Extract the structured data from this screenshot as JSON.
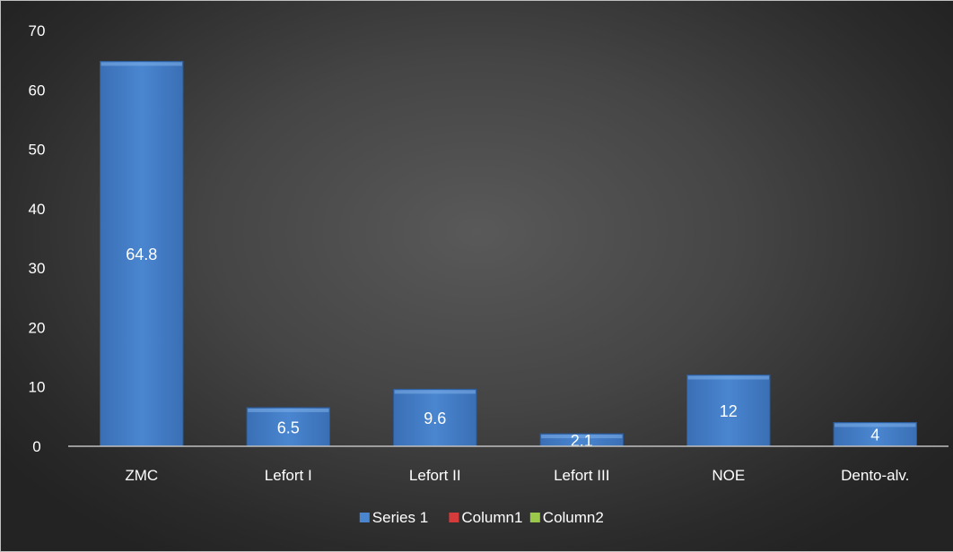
{
  "chart_data": {
    "type": "bar",
    "categories": [
      "ZMC",
      "Lefort I",
      "Lefort II",
      "Lefort III",
      "NOE",
      "Dento-alv."
    ],
    "series": [
      {
        "name": "Series 1",
        "values": [
          64.8,
          6.5,
          9.6,
          2.1,
          12,
          4
        ],
        "color": "#4a86d0"
      }
    ],
    "data_labels": [
      "64.8",
      "6.5",
      "9.6",
      "2.1",
      "12",
      "4"
    ],
    "ylim": [
      0,
      70
    ],
    "yticks": [
      0,
      10,
      20,
      30,
      40,
      50,
      60,
      70
    ],
    "legend": [
      {
        "label": "Series 1",
        "color": "#4a86d0"
      },
      {
        "label": "Column1",
        "color": "#d63b3b"
      },
      {
        "label": "Column2",
        "color": "#9bc84a"
      }
    ],
    "legend_position": "bottom",
    "grid": false,
    "title": "",
    "xlabel": "",
    "ylabel": ""
  },
  "colors": {
    "text": "#ffffff",
    "axis": "#bfbfbf"
  }
}
